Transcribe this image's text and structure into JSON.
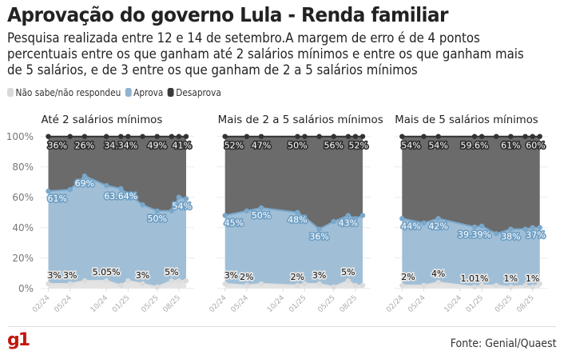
{
  "header": {
    "title": "Aprovação do governo Lula - Renda familiar",
    "subtitle": "Pesquisa realizada entre 12 e 14 de setembro.A margem de erro é de 4 pontos percentuais entre os que ganham até 2 salários mínimos e entre os que ganham mais de 5 salários, e de 3 entre os que ganham de 2 a 5 salários mínimos"
  },
  "legend": [
    {
      "label": "Não sabe/não respondeu",
      "color": "#d9d9d9"
    },
    {
      "label": "Aprova",
      "color": "#8fb3d1"
    },
    {
      "label": "Desaprova",
      "color": "#3a3a3a"
    }
  ],
  "footer": {
    "logo": "g1",
    "source": "Fonte: Genial/Quaest"
  },
  "chart_data": [
    {
      "type": "area",
      "stacked": true,
      "title": "Até 2 salários mínimos",
      "ylim": [
        0,
        100
      ],
      "yticks": [
        "0%",
        "20%",
        "40%",
        "60%",
        "80%",
        "100%"
      ],
      "xticks": [
        "02/24",
        "05/24",
        "10/24",
        "01/25",
        "05/25",
        "08/25"
      ],
      "x": [
        "2024-02",
        "2024-05",
        "2024-07",
        "2024-10",
        "2024-12",
        "2025-01",
        "2025-03",
        "2025-05",
        "2025-07",
        "2025-08",
        "2025-09"
      ],
      "series": [
        {
          "name": "Não sabe/não respondeu",
          "values": [
            3,
            3,
            5,
            5.05,
            2,
            5,
            3,
            1,
            5,
            5,
            5
          ],
          "labeled": [
            0,
            1,
            3,
            6,
            8
          ],
          "labels": [
            "3%",
            "3%",
            "5.05%",
            "3%",
            "5%"
          ]
        },
        {
          "name": "Aprova",
          "values": [
            61,
            62,
            69,
            62.6,
            63.64,
            57,
            52,
            50,
            46,
            55,
            54
          ],
          "labeled": [
            0,
            2,
            4,
            7,
            10
          ],
          "labels": [
            "61%",
            "69%",
            "63.64%",
            "50%",
            "54%"
          ]
        },
        {
          "name": "Desaprova",
          "values": [
            36,
            35,
            26,
            32.35,
            34.34,
            38,
            45,
            49,
            49,
            40,
            41
          ],
          "labeled": [
            0,
            2,
            4,
            7,
            10
          ],
          "labels": [
            "36%",
            "26%",
            "34.34%",
            "49%",
            "41%"
          ]
        }
      ]
    },
    {
      "type": "area",
      "stacked": true,
      "title": "Mais de 2 a 5 salários mínimos",
      "ylim": [
        0,
        100
      ],
      "xticks": [
        "02/24",
        "05/24",
        "10/24",
        "01/25",
        "05/25",
        "08/25"
      ],
      "x": [
        "2024-02",
        "2024-05",
        "2024-07",
        "2024-12",
        "2025-01",
        "2025-03",
        "2025-05",
        "2025-07",
        "2025-08",
        "2025-09"
      ],
      "series": [
        {
          "name": "Não sabe/não respondeu",
          "values": [
            3,
            2,
            3,
            2,
            3,
            3,
            1,
            5,
            2,
            2
          ],
          "labeled": [
            0,
            1,
            3,
            5,
            7
          ],
          "labels": [
            "3%",
            "2%",
            "2%",
            "3%",
            "5%"
          ]
        },
        {
          "name": "Aprova",
          "values": [
            45,
            49,
            50,
            48,
            44,
            36,
            43,
            43,
            44,
            46
          ],
          "labeled": [
            0,
            2,
            3,
            5,
            7
          ],
          "labels": [
            "45%",
            "50%",
            "48%",
            "36%",
            "43%"
          ]
        },
        {
          "name": "Desaprova",
          "values": [
            52,
            49,
            47,
            50,
            53,
            61,
            56,
            52,
            54,
            52
          ],
          "labeled": [
            0,
            2,
            3,
            6,
            9
          ],
          "labels": [
            "52%",
            "47%",
            "50%",
            "56%",
            "52%"
          ]
        }
      ]
    },
    {
      "type": "area",
      "stacked": true,
      "title": "Mais de 5 salários mínimos",
      "ylim": [
        0,
        100
      ],
      "xticks": [
        "02/24",
        "05/24",
        "10/24",
        "01/25",
        "05/25",
        "08/25"
      ],
      "x": [
        "2024-02",
        "2024-05",
        "2024-07",
        "2024-12",
        "2025-01",
        "2025-03",
        "2025-05",
        "2025-07",
        "2025-08",
        "2025-09"
      ],
      "series": [
        {
          "name": "Não sabe/não respondeu",
          "values": [
            2,
            2,
            4,
            1.01,
            2,
            2,
            1,
            2,
            1,
            3
          ],
          "labeled": [
            0,
            2,
            3,
            6,
            8
          ],
          "labels": [
            "2%",
            "4%",
            "1.01%",
            "1%",
            "1%"
          ]
        },
        {
          "name": "Aprova",
          "values": [
            44,
            41,
            42,
            39.39,
            39,
            34,
            38,
            37,
            39,
            37
          ],
          "labeled": [
            0,
            2,
            3,
            6,
            9
          ],
          "labels": [
            "44%",
            "42%",
            "39.39%",
            "38%",
            "37%"
          ]
        },
        {
          "name": "Desaprova",
          "values": [
            54,
            57,
            54,
            59.6,
            59,
            64,
            61,
            61,
            60,
            60
          ],
          "labeled": [
            0,
            2,
            3,
            6,
            9
          ],
          "labels": [
            "54%",
            "54%",
            "59.6%",
            "61%",
            "60%"
          ]
        }
      ]
    }
  ]
}
